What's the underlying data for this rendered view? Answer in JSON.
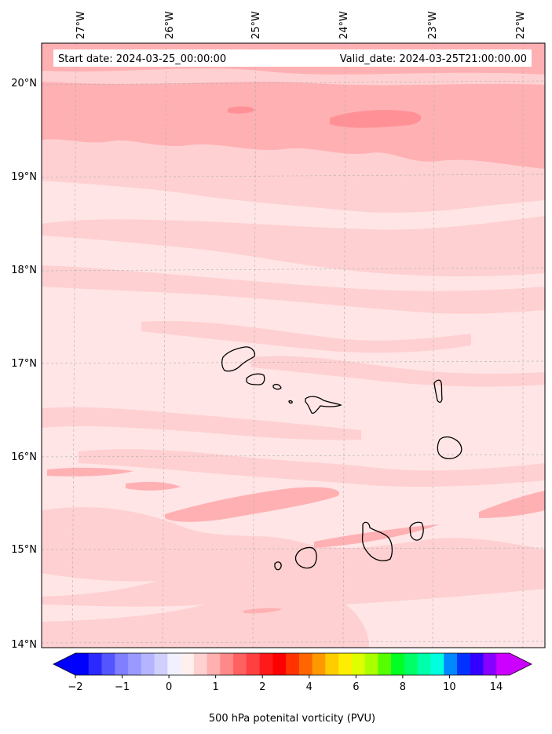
{
  "map": {
    "start_date": "Start date: 2024-03-25_00:00:00",
    "valid_date": "Valid_date: 2024-03-25T21:00:00.00",
    "lon_labels": [
      "27°W",
      "26°W",
      "25°W",
      "24°W",
      "23°W",
      "22°W"
    ],
    "lat_labels": [
      "20°N",
      "19°N",
      "18°N",
      "17°N",
      "16°N",
      "15°N",
      "14°N"
    ],
    "gridlines": true,
    "extent": {
      "lon_min": -27.3,
      "lon_max": -21.8,
      "lat_min": 14.0,
      "lat_max": 20.4
    }
  },
  "colorbar": {
    "title": "500 hPa potenital vorticity (PVU)",
    "tick_labels": [
      "−2",
      "−1",
      "0",
      "1",
      "2",
      "4",
      "6",
      "8",
      "10",
      "14"
    ],
    "extend": "both",
    "colors": [
      "#0000ff",
      "#2a2aff",
      "#5555ff",
      "#7f7fff",
      "#9999ff",
      "#b5b5ff",
      "#d0d0ff",
      "#f0f0ff",
      "#fff0f0",
      "#ffd0d0",
      "#ffb0b0",
      "#ff8888",
      "#ff6060",
      "#ff4040",
      "#ff1a1a",
      "#ff0000",
      "#ff3300",
      "#ff6600",
      "#ff9900",
      "#ffcc00",
      "#ffee00",
      "#ddff00",
      "#aaff00",
      "#55ff00",
      "#00ff22",
      "#00ff66",
      "#00ffaa",
      "#00ffdd",
      "#0088ff",
      "#0033ff",
      "#3300ff",
      "#8800ff",
      "#cc00ff"
    ],
    "under_color": "#0000ff",
    "over_color": "#cc00ff"
  },
  "field_colors": {
    "lightest": "#fff0f0",
    "light": "#ffe5e6",
    "mid": "#ffd0d1",
    "darker": "#ffb0b3",
    "darkest": "#ff9196"
  },
  "islands": [
    "Santo Antão",
    "São Vicente",
    "Santa Luzia",
    "São Nicolau",
    "Sal",
    "Boa Vista",
    "Maio",
    "Santiago",
    "Fogo",
    "Brava"
  ]
}
